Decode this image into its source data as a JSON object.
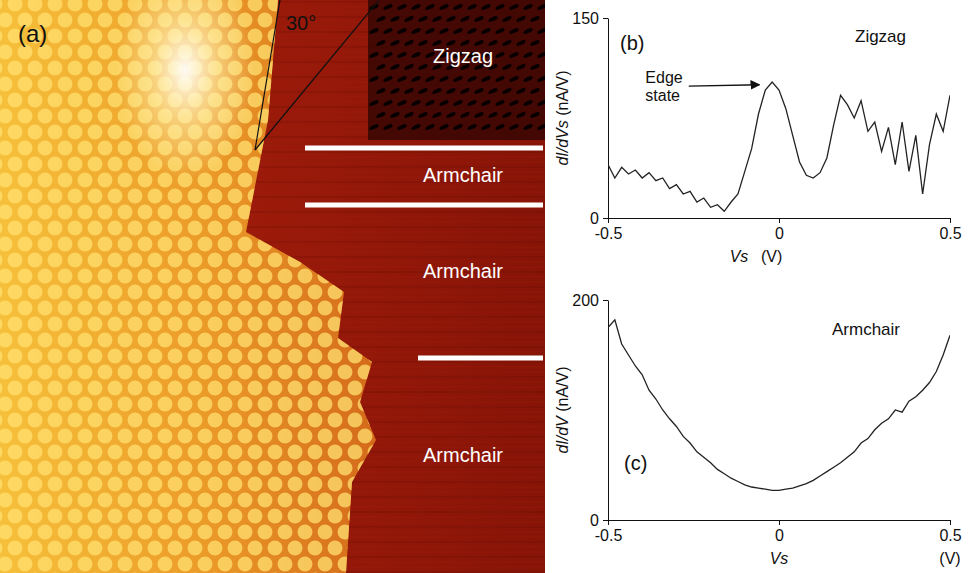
{
  "image": {
    "label": "(a)",
    "angle_label": "30°",
    "edge_labels": [
      "Zigzag",
      "Armchair",
      "Armchair",
      "Armchair"
    ]
  },
  "chart_data": [
    {
      "type": "line",
      "label": "(b)",
      "title": "Zigzag",
      "x_label": "Vs",
      "x_unit": "(V)",
      "y_label": "dI/dVs (nA/V)",
      "color": "#222222",
      "xlim": [
        -0.5,
        0.5
      ],
      "xticks": [
        -0.5,
        0,
        0.5
      ],
      "ylim": [
        0,
        150
      ],
      "yticks": [
        0,
        150
      ],
      "annotations": [
        {
          "text": "Edge state",
          "x": -0.04,
          "y": 100
        }
      ],
      "x": [
        -0.5,
        -0.48,
        -0.46,
        -0.44,
        -0.42,
        -0.4,
        -0.38,
        -0.36,
        -0.34,
        -0.32,
        -0.3,
        -0.28,
        -0.26,
        -0.24,
        -0.22,
        -0.2,
        -0.18,
        -0.16,
        -0.14,
        -0.12,
        -0.1,
        -0.08,
        -0.06,
        -0.04,
        -0.02,
        0,
        0.02,
        0.04,
        0.06,
        0.08,
        0.1,
        0.12,
        0.14,
        0.16,
        0.18,
        0.2,
        0.22,
        0.24,
        0.26,
        0.28,
        0.3,
        0.32,
        0.34,
        0.36,
        0.38,
        0.4,
        0.42,
        0.44,
        0.46,
        0.48,
        0.5
      ],
      "values": [
        40,
        30,
        38,
        33,
        36,
        30,
        34,
        28,
        30,
        22,
        25,
        18,
        20,
        12,
        15,
        8,
        10,
        5,
        12,
        18,
        35,
        52,
        78,
        96,
        102,
        96,
        82,
        62,
        42,
        32,
        30,
        34,
        45,
        70,
        92,
        85,
        75,
        88,
        65,
        72,
        50,
        68,
        40,
        72,
        35,
        62,
        18,
        55,
        78,
        65,
        92
      ]
    },
    {
      "type": "line",
      "label": "(c)",
      "title": "Armchair",
      "x_label": "Vs",
      "x_unit": "(V)",
      "y_label": "dI/dV (nA/V)",
      "color": "#222222",
      "xlim": [
        -0.5,
        0.5
      ],
      "xticks": [
        -0.5,
        0,
        0.5
      ],
      "ylim": [
        0,
        200
      ],
      "yticks": [
        0,
        200
      ],
      "x": [
        -0.5,
        -0.48,
        -0.46,
        -0.44,
        -0.42,
        -0.4,
        -0.38,
        -0.36,
        -0.34,
        -0.32,
        -0.3,
        -0.28,
        -0.26,
        -0.24,
        -0.22,
        -0.2,
        -0.18,
        -0.16,
        -0.14,
        -0.12,
        -0.1,
        -0.08,
        -0.06,
        -0.04,
        -0.02,
        0,
        0.02,
        0.04,
        0.06,
        0.08,
        0.1,
        0.12,
        0.14,
        0.16,
        0.18,
        0.2,
        0.22,
        0.24,
        0.26,
        0.28,
        0.3,
        0.32,
        0.34,
        0.36,
        0.38,
        0.4,
        0.42,
        0.44,
        0.46,
        0.48,
        0.5
      ],
      "values": [
        175,
        182,
        160,
        150,
        140,
        132,
        118,
        110,
        100,
        92,
        85,
        76,
        70,
        62,
        57,
        52,
        46,
        42,
        38,
        35,
        32,
        30,
        29,
        28,
        27,
        27,
        28,
        29,
        31,
        33,
        36,
        40,
        44,
        48,
        52,
        57,
        62,
        70,
        74,
        82,
        88,
        92,
        100,
        98,
        108,
        112,
        118,
        125,
        135,
        150,
        168
      ]
    }
  ]
}
